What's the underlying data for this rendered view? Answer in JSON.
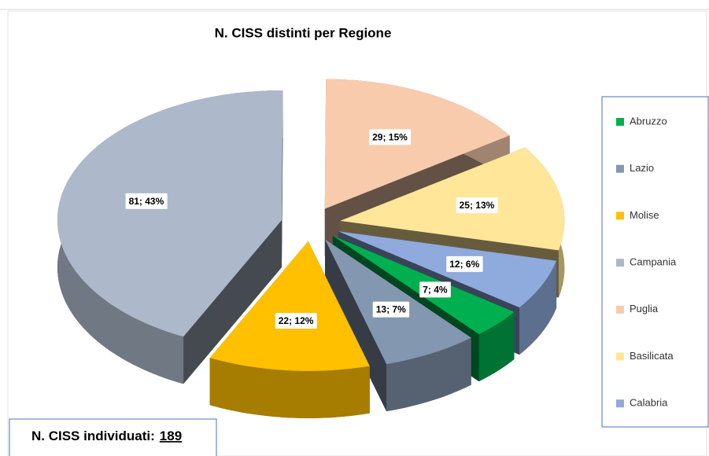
{
  "chart_data": {
    "type": "pie",
    "title": "N. CISS distinti per Regione",
    "categories": [
      "Abruzzo",
      "Lazio",
      "Molise",
      "Campania",
      "Puglia",
      "Basilicata",
      "Calabria"
    ],
    "values": [
      7,
      13,
      22,
      81,
      29,
      25,
      12
    ],
    "value_labels": [
      "7; 4%",
      "13; 7%",
      "22; 12%",
      "81; 43%",
      "29; 15%",
      "25; 13%",
      "12; 6%"
    ],
    "colors": [
      "#00b050",
      "#8497b0",
      "#ffc000",
      "#adb9ca",
      "#f8cbad",
      "#ffe699",
      "#8faadc"
    ],
    "legend": "right",
    "total_label": "N. CISS individuati:",
    "total": 189
  }
}
